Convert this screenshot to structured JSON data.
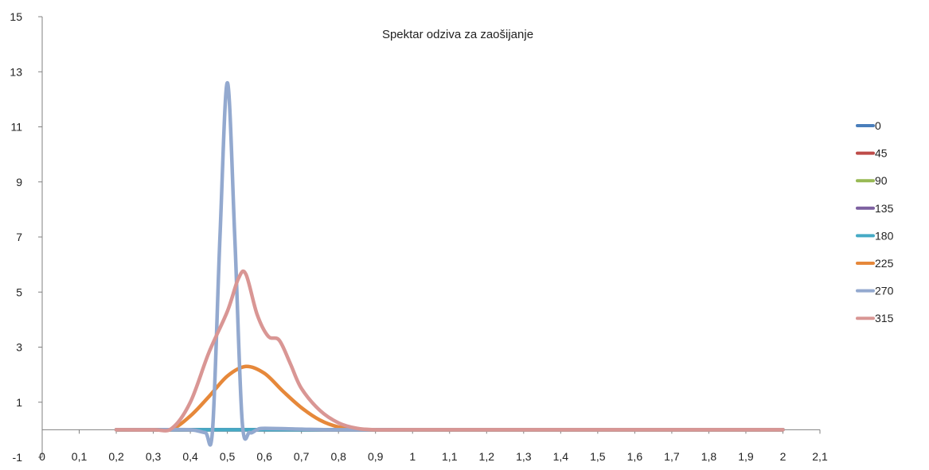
{
  "chart_data": {
    "type": "line",
    "title": "Spektar odziva za  zaošijanje",
    "xlabel": "",
    "ylabel": "",
    "xlim": [
      0,
      2.1
    ],
    "ylim": [
      -1,
      15
    ],
    "x_ticks": [
      "0",
      "0,1",
      "0,2",
      "0,3",
      "0,4",
      "0,5",
      "0,6",
      "0,7",
      "0,8",
      "0,9",
      "1",
      "1,1",
      "1,2",
      "1,3",
      "1,4",
      "1,5",
      "1,6",
      "1,7",
      "1,8",
      "1,9",
      "2",
      "2,1"
    ],
    "y_ticks": [
      "-1",
      "1",
      "3",
      "5",
      "7",
      "9",
      "11",
      "13",
      "15"
    ],
    "grid": false,
    "legend_position": "right",
    "series": [
      {
        "name": "0",
        "color": "#4a7ebb",
        "points": [
          [
            0.2,
            0
          ],
          [
            0.4,
            0
          ],
          [
            0.6,
            0
          ],
          [
            0.8,
            0
          ],
          [
            1.0,
            0
          ],
          [
            1.5,
            0
          ],
          [
            2.0,
            0
          ]
        ]
      },
      {
        "name": "45",
        "color": "#be4b48",
        "points": [
          [
            0.2,
            0
          ],
          [
            0.4,
            0
          ],
          [
            0.6,
            0
          ],
          [
            0.8,
            0
          ],
          [
            1.0,
            0
          ],
          [
            1.5,
            0
          ],
          [
            2.0,
            0
          ]
        ]
      },
      {
        "name": "90",
        "color": "#98b954",
        "points": [
          [
            0.2,
            0
          ],
          [
            0.4,
            0
          ],
          [
            0.6,
            0
          ],
          [
            0.8,
            0
          ],
          [
            1.0,
            0
          ],
          [
            1.5,
            0
          ],
          [
            2.0,
            0
          ]
        ]
      },
      {
        "name": "135",
        "color": "#7d60a0",
        "points": [
          [
            0.2,
            0
          ],
          [
            0.4,
            0
          ],
          [
            0.6,
            0
          ],
          [
            0.8,
            0
          ],
          [
            1.0,
            0
          ],
          [
            1.5,
            0
          ],
          [
            2.0,
            0
          ]
        ]
      },
      {
        "name": "180",
        "color": "#46aac5",
        "points": [
          [
            0.2,
            0
          ],
          [
            0.4,
            0
          ],
          [
            0.6,
            0
          ],
          [
            0.8,
            0
          ],
          [
            1.0,
            0
          ],
          [
            1.5,
            0
          ],
          [
            2.0,
            0
          ]
        ]
      },
      {
        "name": "225",
        "color": "#e6883a",
        "points": [
          [
            0.2,
            0
          ],
          [
            0.3,
            0
          ],
          [
            0.35,
            0.02
          ],
          [
            0.4,
            0.5
          ],
          [
            0.45,
            1.2
          ],
          [
            0.5,
            1.95
          ],
          [
            0.55,
            2.3
          ],
          [
            0.6,
            2.05
          ],
          [
            0.65,
            1.4
          ],
          [
            0.7,
            0.8
          ],
          [
            0.75,
            0.35
          ],
          [
            0.8,
            0.1
          ],
          [
            0.85,
            0.02
          ],
          [
            0.9,
            0
          ],
          [
            1.0,
            0
          ],
          [
            1.5,
            0
          ],
          [
            2.0,
            0
          ]
        ]
      },
      {
        "name": "270",
        "color": "#93a9cf",
        "points": [
          [
            0.2,
            0
          ],
          [
            0.3,
            0
          ],
          [
            0.4,
            0
          ],
          [
            0.44,
            -0.1
          ],
          [
            0.46,
            0
          ],
          [
            0.48,
            7
          ],
          [
            0.5,
            12.6
          ],
          [
            0.52,
            7
          ],
          [
            0.54,
            0.3
          ],
          [
            0.56,
            -0.1
          ],
          [
            0.58,
            0
          ],
          [
            0.6,
            0.05
          ],
          [
            0.7,
            0.02
          ],
          [
            0.8,
            0
          ],
          [
            1.0,
            0
          ],
          [
            1.5,
            0
          ],
          [
            2.0,
            0
          ]
        ]
      },
      {
        "name": "315",
        "color": "#d99694",
        "points": [
          [
            0.2,
            0
          ],
          [
            0.3,
            0
          ],
          [
            0.35,
            0.05
          ],
          [
            0.4,
            1.0
          ],
          [
            0.45,
            2.8
          ],
          [
            0.5,
            4.3
          ],
          [
            0.53,
            5.5
          ],
          [
            0.55,
            5.65
          ],
          [
            0.58,
            4.2
          ],
          [
            0.61,
            3.4
          ],
          [
            0.64,
            3.25
          ],
          [
            0.67,
            2.4
          ],
          [
            0.7,
            1.5
          ],
          [
            0.75,
            0.7
          ],
          [
            0.8,
            0.25
          ],
          [
            0.85,
            0.05
          ],
          [
            0.9,
            0
          ],
          [
            1.0,
            0
          ],
          [
            1.5,
            0
          ],
          [
            2.0,
            0
          ]
        ]
      }
    ]
  }
}
